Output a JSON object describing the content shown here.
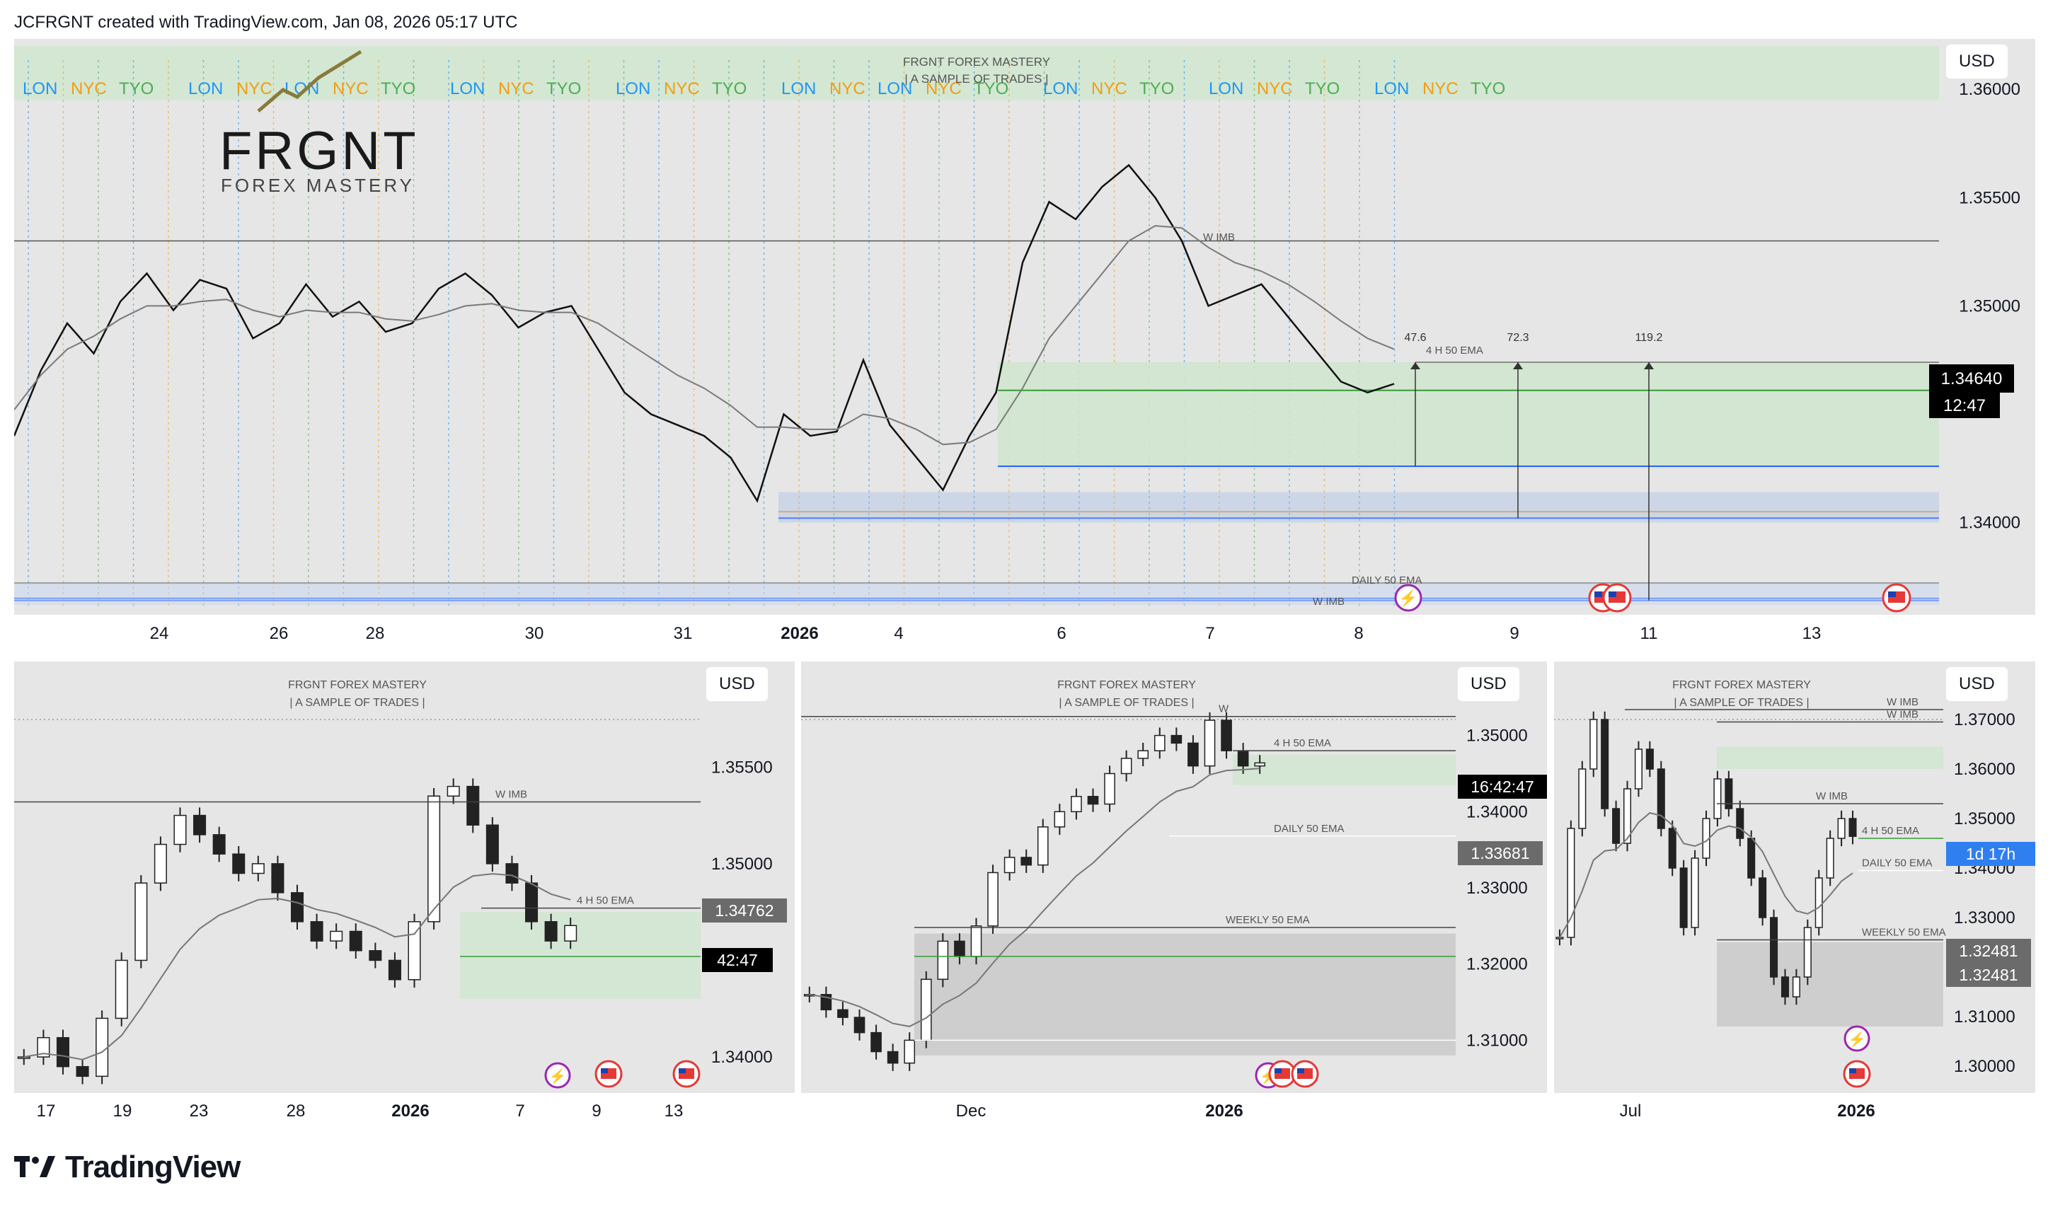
{
  "header": {
    "credit": "JCFRGNT created with TradingView.com, Jan 08, 2026 05:17 UTC"
  },
  "footer": {
    "brand": "TradingView"
  },
  "colors": {
    "bg": "#e6e6e6",
    "green_zone": "#cfe6cf",
    "blue": "#2962ff",
    "orange": "#f2a33a",
    "lon": "#2196f3",
    "nyc": "#f39c12",
    "tyo": "#4caf50",
    "price_badge": "#000000",
    "grey_badge": "#6b6b6b",
    "blue_badge": "#2f7ff0"
  },
  "main": {
    "currency": "USD",
    "logo_title": "FRGNT",
    "logo_subtitle": "FOREX MASTERY",
    "watermark_title": "FRGNT FOREX MASTERY",
    "watermark_sub": "| A SAMPLE OF TRADES |",
    "sessions": [
      "LON",
      "NYC",
      "TYO",
      "LON",
      "NYC",
      "LON",
      "NYC",
      "TYO",
      "LON",
      "NYC",
      "TYO",
      "LON",
      "NYC",
      "TYO",
      "LON",
      "NYC",
      "LON",
      "NYC",
      "TYO",
      "LON",
      "NYC",
      "TYO",
      "LON",
      "NYC",
      "TYO",
      "LON",
      "NYC",
      "TYO"
    ],
    "session_colors": {
      "LON": "#2196f3",
      "NYC": "#f39c12",
      "TYO": "#4caf50"
    },
    "price_badge": "1.34640",
    "timer_badge": "12:47",
    "annotations": {
      "w_imb_top": "W IMB",
      "w_imb_bottom": "W IMB",
      "ema_4h": "4 H 50 EMA",
      "daily_ema": "DAILY 50 EMA",
      "target1": "47.6",
      "target2": "72.3",
      "target3": "119.2"
    },
    "icon_economic": "lightning-icon",
    "icon_flag": "us-flag-icon",
    "chart_data": {
      "type": "line",
      "title": "",
      "xlabel": "",
      "ylabel": "",
      "ylim": [
        1.336,
        1.362
      ],
      "grid": false,
      "x_ticks": [
        "24",
        "26",
        "28",
        "30",
        "31",
        "2026",
        "4",
        "6",
        "7",
        "8",
        "9",
        "11",
        "13"
      ],
      "y_ticks": [
        "1.36000",
        "1.35500",
        "1.35000",
        "1.34000"
      ],
      "series": [
        {
          "values": [
            1.344,
            1.347,
            1.3492,
            1.3478,
            1.3502,
            1.3515,
            1.3498,
            1.3512,
            1.3508,
            1.3485,
            1.3492,
            1.351,
            1.3495,
            1.3502,
            1.3488,
            1.3492,
            1.3508,
            1.3515,
            1.3505,
            1.349,
            1.3497,
            1.35,
            1.348,
            1.346,
            1.345,
            1.3445,
            1.344,
            1.343,
            1.341,
            1.345,
            1.344,
            1.3442,
            1.3475,
            1.3445,
            1.343,
            1.3415,
            1.344,
            1.346,
            1.352,
            1.3548,
            1.354,
            1.3555,
            1.3565,
            1.355,
            1.353,
            1.35,
            1.3505,
            1.351,
            1.3495,
            1.348,
            1.3465,
            1.346,
            1.3464
          ]
        },
        {
          "values": [
            1.3452,
            1.3468,
            1.348,
            1.3486,
            1.3494,
            1.35,
            1.35,
            1.3502,
            1.3503,
            1.3498,
            1.3495,
            1.3498,
            1.3497,
            1.3497,
            1.3494,
            1.3493,
            1.3496,
            1.35,
            1.3501,
            1.3498,
            1.3497,
            1.3497,
            1.3492,
            1.3484,
            1.3476,
            1.3468,
            1.3462,
            1.3454,
            1.3444,
            1.3444,
            1.3443,
            1.3443,
            1.345,
            1.3448,
            1.3443,
            1.3436,
            1.3437,
            1.3443,
            1.3462,
            1.3485,
            1.35,
            1.3515,
            1.353,
            1.3537,
            1.3536,
            1.3527,
            1.352,
            1.3516,
            1.351,
            1.3502,
            1.3493,
            1.3485,
            1.348
          ]
        }
      ],
      "levels": [
        1.353,
        1.3461,
        1.3426,
        1.3405,
        1.3402,
        1.3372,
        1.3365,
        1.3364
      ],
      "zones": [
        {
          "from": 1.3595,
          "to": 1.362
        },
        {
          "from": 1.3425,
          "to": 1.3474
        }
      ]
    }
  },
  "bottom_left": {
    "currency": "USD",
    "watermark_title": "FRGNT FOREX MASTERY",
    "watermark_sub": "| A SAMPLE OF TRADES |",
    "price_badge": "1.34762",
    "timer_badge": "42:47",
    "annotations": {
      "w_imb": "W IMB",
      "ema_4h": "4 H 50 EMA"
    },
    "chart_data": {
      "type": "bar",
      "title": "",
      "ylim": [
        1.3385,
        1.359
      ],
      "x_ticks": [
        "17",
        "19",
        "23",
        "28",
        "2026",
        "7",
        "9",
        "13"
      ],
      "y_ticks": [
        "1.35500",
        "1.35000",
        "1.34000"
      ],
      "series": [
        {
          "values": [
            1.34,
            1.341,
            1.3395,
            1.339,
            1.342,
            1.345,
            1.349,
            1.351,
            1.3525,
            1.3515,
            1.3505,
            1.3495,
            1.35,
            1.3485,
            1.347,
            1.346,
            1.3465,
            1.3455,
            1.345,
            1.344,
            1.347,
            1.3535,
            1.354,
            1.352,
            1.35,
            1.349,
            1.347,
            1.346,
            1.3468
          ]
        }
      ]
    }
  },
  "bottom_mid": {
    "currency": "USD",
    "watermark_title": "FRGNT FOREX MASTERY",
    "watermark_sub": "| A SAMPLE OF TRADES |",
    "price_badge": "1.33681",
    "timer_badge": "16:42:47",
    "annotations": {
      "w_imb": "W",
      "ema_4h": "4 H 50 EMA",
      "daily_ema": "DAILY 50 EMA",
      "weekly_ema": "WEEKLY 50 EMA"
    },
    "chart_data": {
      "type": "bar",
      "title": "",
      "ylim": [
        1.304,
        1.356
      ],
      "x_ticks": [
        "Dec",
        "2026"
      ],
      "y_ticks": [
        "1.35000",
        "1.34000",
        "1.33000",
        "1.32000",
        "1.31000"
      ],
      "series": [
        {
          "values": [
            1.316,
            1.314,
            1.313,
            1.311,
            1.3085,
            1.307,
            1.31,
            1.318,
            1.323,
            1.321,
            1.325,
            1.332,
            1.334,
            1.333,
            1.338,
            1.34,
            1.342,
            1.341,
            1.345,
            1.347,
            1.348,
            1.35,
            1.349,
            1.346,
            1.352,
            1.348,
            1.346,
            1.3464
          ]
        }
      ]
    }
  },
  "bottom_right": {
    "currency": "USD",
    "watermark_title": "FRGNT FOREX MASTERY",
    "watermark_sub": "| A SAMPLE OF TRADES |",
    "price_badge": "1.32481",
    "price_badge2": "1.32481",
    "timer_badge": "1d 17h",
    "annotations": {
      "w_imb_1": "W IMB",
      "w_imb_2": "W IMB",
      "w_imb_3": "W IMB",
      "ema_4h": "4 H 50 EMA",
      "daily_ema": "DAILY 50 EMA",
      "weekly_ema": "WEEKLY 50 EMA"
    },
    "chart_data": {
      "type": "bar",
      "title": "",
      "ylim": [
        1.296,
        1.376
      ],
      "x_ticks": [
        "Jul",
        "2026"
      ],
      "y_ticks": [
        "1.37000",
        "1.36000",
        "1.35000",
        "1.34000",
        "1.33000",
        "1.32000",
        "1.31000",
        "1.30000"
      ],
      "series": [
        {
          "values": [
            1.326,
            1.348,
            1.36,
            1.37,
            1.352,
            1.345,
            1.356,
            1.364,
            1.36,
            1.348,
            1.34,
            1.328,
            1.342,
            1.35,
            1.358,
            1.352,
            1.346,
            1.338,
            1.33,
            1.318,
            1.314,
            1.318,
            1.328,
            1.338,
            1.346,
            1.35,
            1.3464
          ]
        }
      ]
    }
  }
}
